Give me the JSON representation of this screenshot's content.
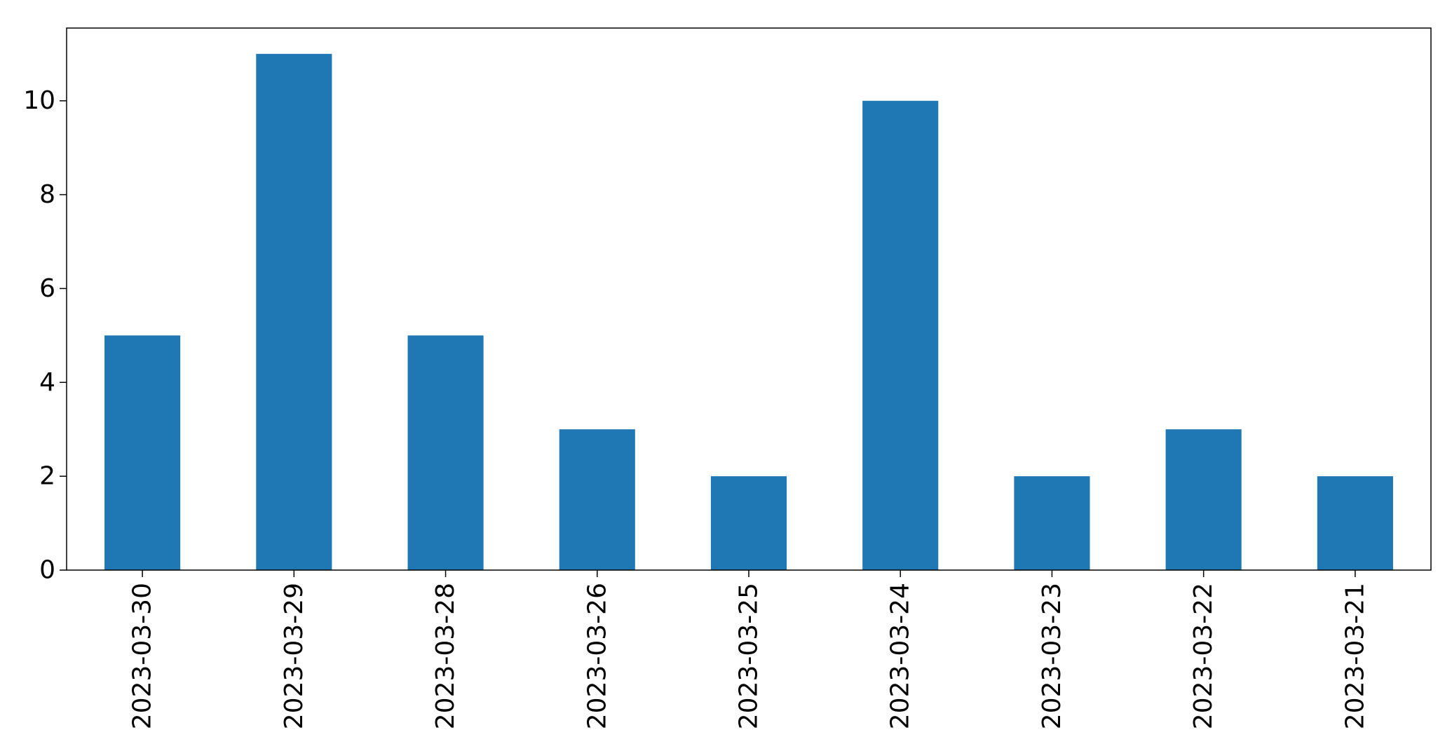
{
  "chart_data": {
    "type": "bar",
    "categories": [
      "2023-03-30",
      "2023-03-29",
      "2023-03-28",
      "2023-03-26",
      "2023-03-25",
      "2023-03-24",
      "2023-03-23",
      "2023-03-22",
      "2023-03-21"
    ],
    "values": [
      5,
      11,
      5,
      3,
      2,
      10,
      2,
      3,
      2
    ],
    "title": "",
    "xlabel": "",
    "ylabel": "",
    "ylim": [
      0,
      11.55
    ],
    "yticks": [
      0,
      2,
      4,
      6,
      8,
      10
    ],
    "grid": false,
    "legend": "none",
    "bar_color": "#1f77b4"
  }
}
